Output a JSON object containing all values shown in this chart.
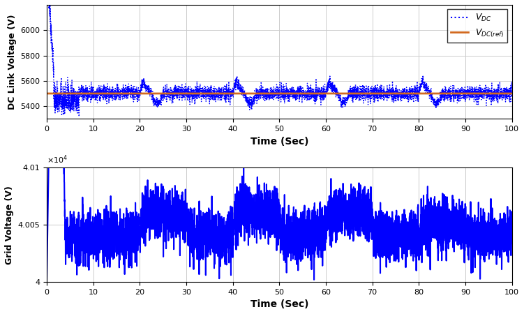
{
  "upper_ylabel": "DC Link Voltage (V)",
  "upper_xlabel": "Time (Sec)",
  "lower_ylabel": "Grid Voltage (V)",
  "lower_xlabel": "Time (Sec)",
  "xlim": [
    0,
    100
  ],
  "upper_ylim": [
    5300,
    6200
  ],
  "upper_yticks": [
    5400,
    5600,
    5800,
    6000
  ],
  "lower_ylim": [
    40000,
    40100
  ],
  "lower_yticks": [
    40000,
    40050,
    40100
  ],
  "lower_ytick_labels": [
    "4",
    "4.005",
    "4.01"
  ],
  "vdc_ref": 5500,
  "grid_color": "#cccccc",
  "blue_color": "#0000FF",
  "orange_color": "#D2691E"
}
